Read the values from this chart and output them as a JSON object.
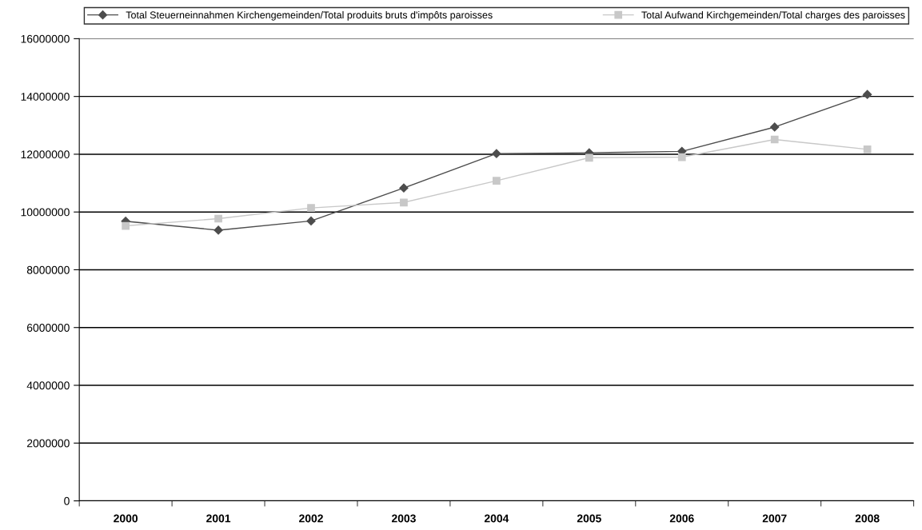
{
  "chart_data": {
    "type": "line",
    "categories": [
      "2000",
      "2001",
      "2002",
      "2003",
      "2004",
      "2005",
      "2006",
      "2007",
      "2008"
    ],
    "series": [
      {
        "name": "Total Steuerneinnahmen Kirchengemeinden/Total produits bruts d'impôts paroisses",
        "color": "#4d4d4d",
        "marker": "diamond",
        "values": [
          9680000,
          9370000,
          9690000,
          10830000,
          12020000,
          12050000,
          12100000,
          12940000,
          14070000
        ]
      },
      {
        "name": "Total Aufwand Kirchgemeinden/Total charges des paroisses",
        "color": "#c8c8c8",
        "marker": "square",
        "values": [
          9520000,
          9770000,
          10140000,
          10330000,
          11080000,
          11880000,
          11900000,
          12510000,
          12170000
        ]
      }
    ],
    "ylim": [
      0,
      16000000
    ],
    "yticks": [
      0,
      2000000,
      4000000,
      6000000,
      8000000,
      10000000,
      12000000,
      14000000,
      16000000
    ],
    "grid": "y",
    "legend": "top",
    "line_style": "solid"
  }
}
